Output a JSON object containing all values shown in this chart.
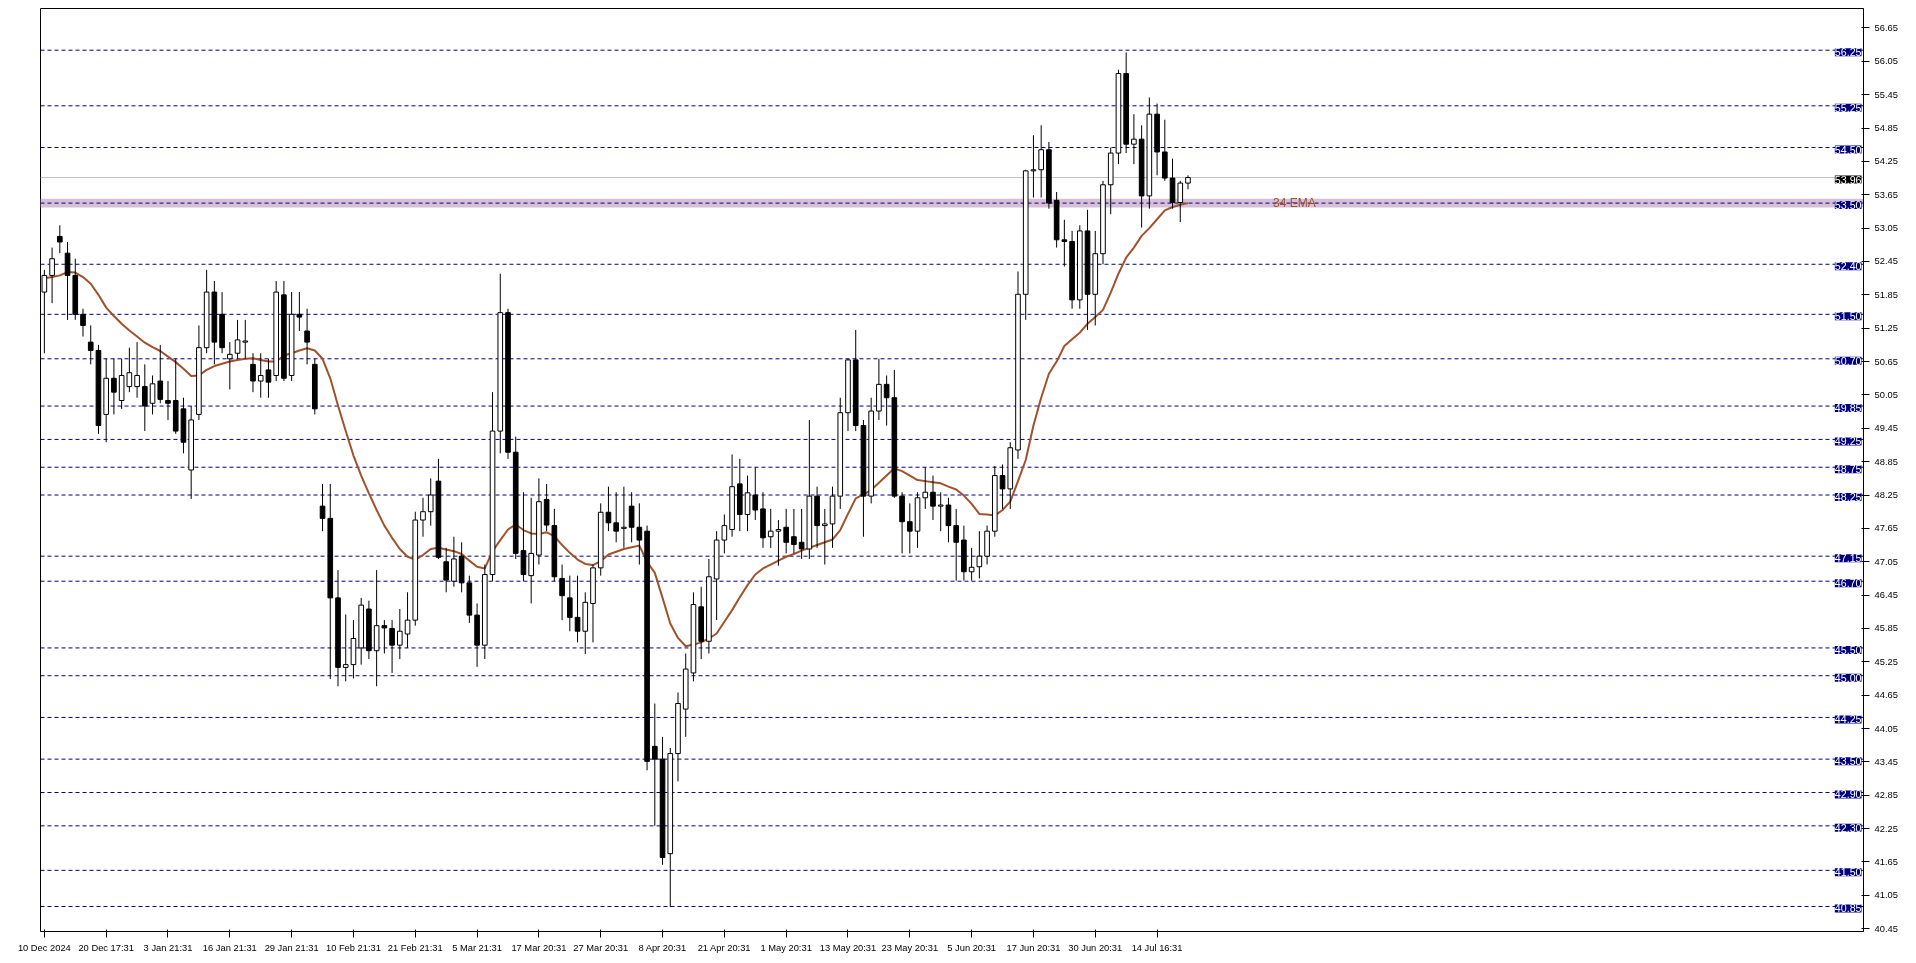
{
  "chart_data": {
    "type": "candlestick",
    "categories": [
      "10 Dec 2024",
      null,
      null,
      null,
      null,
      null,
      null,
      null,
      "20 Dec 17:31",
      null,
      null,
      null,
      null,
      null,
      null,
      null,
      "3 Jan 21:31",
      null,
      null,
      null,
      null,
      null,
      null,
      null,
      "16 Jan 21:31",
      null,
      null,
      null,
      null,
      null,
      null,
      null,
      "29 Jan 21:31",
      null,
      null,
      null,
      null,
      null,
      null,
      null,
      "10 Feb 21:31",
      null,
      null,
      null,
      null,
      null,
      null,
      null,
      "21 Feb 21:31",
      null,
      null,
      null,
      null,
      null,
      null,
      null,
      "5 Mar 21:31",
      null,
      null,
      null,
      null,
      null,
      null,
      null,
      "17 Mar 20:31",
      null,
      null,
      null,
      null,
      null,
      null,
      null,
      "27 Mar 20:31",
      null,
      null,
      null,
      null,
      null,
      null,
      null,
      "8 Apr 20:31",
      null,
      null,
      null,
      null,
      null,
      null,
      null,
      "21 Apr 20:31",
      null,
      null,
      null,
      null,
      null,
      null,
      null,
      "1 May 20:31",
      null,
      null,
      null,
      null,
      null,
      null,
      null,
      "13 May 20:31",
      null,
      null,
      null,
      null,
      null,
      null,
      null,
      "23 May 20:31",
      null,
      null,
      null,
      null,
      null,
      null,
      null,
      "5 Jun 20:31",
      null,
      null,
      null,
      null,
      null,
      null,
      null,
      "17 Jun 20:31",
      null,
      null,
      null,
      null,
      null,
      null,
      null,
      "30 Jun 20:31",
      null,
      null,
      null,
      null,
      null,
      null,
      null,
      "14 Jul 16:31",
      null,
      null,
      null,
      null
    ],
    "ohlc": [
      [
        51.9,
        52.3,
        50.8,
        52.2
      ],
      [
        52.2,
        52.7,
        51.7,
        52.5
      ],
      [
        52.9,
        53.1,
        52.6,
        52.8
      ],
      [
        52.6,
        52.8,
        51.4,
        52.2
      ],
      [
        52.2,
        52.5,
        51.4,
        51.5
      ],
      [
        51.5,
        51.6,
        51.1,
        51.3
      ],
      [
        51.0,
        51.3,
        50.6,
        50.85
      ],
      [
        50.85,
        50.95,
        49.35,
        49.5
      ],
      [
        49.7,
        50.7,
        49.2,
        50.35
      ],
      [
        50.35,
        50.7,
        49.7,
        50.1
      ],
      [
        49.95,
        50.7,
        49.8,
        50.4
      ],
      [
        50.2,
        50.9,
        50.1,
        50.45
      ],
      [
        50.2,
        51.0,
        50.0,
        50.4
      ],
      [
        50.2,
        50.6,
        49.4,
        49.85
      ],
      [
        49.9,
        50.4,
        49.7,
        50.25
      ],
      [
        50.3,
        50.95,
        49.9,
        49.97
      ],
      [
        49.95,
        50.3,
        49.6,
        49.9
      ],
      [
        49.95,
        50.7,
        49.35,
        49.4
      ],
      [
        49.8,
        50.0,
        49.0,
        49.2
      ],
      [
        48.7,
        49.85,
        48.18,
        49.6
      ],
      [
        49.7,
        51.3,
        49.6,
        50.9
      ],
      [
        50.9,
        52.3,
        50.8,
        51.9
      ],
      [
        51.9,
        52.1,
        50.6,
        51.0
      ],
      [
        51.5,
        51.9,
        50.8,
        50.9
      ],
      [
        50.7,
        51.0,
        50.15,
        50.78
      ],
      [
        50.8,
        51.4,
        50.7,
        51.04
      ],
      [
        51.0,
        51.4,
        50.7,
        51.0
      ],
      [
        50.6,
        50.8,
        50.1,
        50.3
      ],
      [
        50.3,
        50.8,
        50.0,
        50.4
      ],
      [
        50.5,
        50.7,
        50.0,
        50.28
      ],
      [
        50.4,
        52.1,
        50.3,
        51.9
      ],
      [
        51.85,
        52.1,
        50.3,
        50.35
      ],
      [
        50.4,
        51.9,
        50.3,
        51.5
      ],
      [
        51.5,
        51.9,
        51.2,
        51.45
      ],
      [
        51.2,
        51.6,
        50.6,
        51.0
      ],
      [
        50.6,
        50.7,
        49.7,
        49.8
      ],
      [
        48.05,
        48.45,
        47.6,
        47.83
      ],
      [
        47.83,
        48.45,
        44.94,
        46.4
      ],
      [
        46.4,
        46.9,
        44.81,
        45.15
      ],
      [
        45.15,
        46.1,
        44.9,
        45.2
      ],
      [
        45.2,
        46.0,
        44.95,
        45.67
      ],
      [
        45.5,
        46.4,
        45.2,
        46.27
      ],
      [
        46.2,
        46.35,
        45.3,
        45.45
      ],
      [
        45.45,
        46.9,
        44.81,
        45.9
      ],
      [
        45.9,
        46.0,
        45.4,
        45.86
      ],
      [
        45.85,
        46.0,
        45.05,
        45.55
      ],
      [
        45.55,
        46.2,
        45.3,
        45.8
      ],
      [
        45.75,
        46.5,
        45.5,
        46.0
      ],
      [
        46.0,
        47.95,
        45.9,
        47.8
      ],
      [
        47.8,
        48.2,
        47.5,
        47.95
      ],
      [
        47.95,
        48.55,
        47.7,
        48.25
      ],
      [
        48.5,
        48.9,
        47.1,
        47.13
      ],
      [
        47.05,
        47.3,
        46.5,
        46.72
      ],
      [
        46.7,
        47.5,
        46.6,
        47.1
      ],
      [
        47.15,
        47.4,
        46.5,
        46.67
      ],
      [
        46.67,
        46.8,
        45.95,
        46.09
      ],
      [
        46.09,
        46.3,
        45.16,
        45.55
      ],
      [
        45.55,
        47.0,
        45.3,
        46.82
      ],
      [
        46.82,
        50.1,
        46.7,
        49.4
      ],
      [
        49.4,
        52.23,
        49.0,
        51.53
      ],
      [
        51.53,
        51.6,
        48.9,
        49.02
      ],
      [
        49.02,
        49.3,
        47.1,
        47.2
      ],
      [
        47.25,
        48.3,
        46.7,
        46.82
      ],
      [
        46.8,
        48.2,
        46.3,
        47.2
      ],
      [
        47.17,
        48.55,
        47.0,
        48.13
      ],
      [
        48.17,
        48.45,
        47.6,
        47.71
      ],
      [
        47.7,
        48.0,
        46.7,
        46.78
      ],
      [
        46.75,
        47.0,
        46.0,
        46.44
      ],
      [
        46.4,
        46.8,
        45.8,
        46.05
      ],
      [
        46.05,
        46.8,
        45.6,
        45.8
      ],
      [
        45.8,
        46.5,
        45.39,
        46.32
      ],
      [
        46.3,
        47.0,
        45.6,
        46.94
      ],
      [
        46.94,
        48.1,
        46.8,
        47.94
      ],
      [
        47.94,
        48.4,
        47.6,
        47.75
      ],
      [
        47.75,
        48.3,
        47.4,
        47.6
      ],
      [
        47.65,
        48.4,
        47.3,
        47.67
      ],
      [
        48.05,
        48.3,
        47.4,
        47.67
      ],
      [
        47.67,
        48.1,
        47.0,
        47.44
      ],
      [
        47.6,
        47.7,
        43.3,
        43.46
      ],
      [
        43.73,
        44.5,
        42.3,
        43.5
      ],
      [
        43.5,
        43.9,
        41.6,
        41.73
      ],
      [
        41.8,
        43.7,
        40.84,
        43.6
      ],
      [
        43.6,
        44.7,
        43.1,
        44.5
      ],
      [
        44.4,
        45.4,
        43.9,
        45.12
      ],
      [
        45.05,
        46.5,
        44.9,
        46.28
      ],
      [
        46.24,
        46.6,
        45.3,
        45.62
      ],
      [
        45.62,
        47.1,
        45.4,
        46.78
      ],
      [
        46.74,
        47.6,
        46.0,
        47.44
      ],
      [
        47.44,
        47.9,
        47.2,
        47.7
      ],
      [
        47.63,
        48.98,
        47.5,
        48.4
      ],
      [
        48.45,
        48.9,
        47.6,
        47.9
      ],
      [
        47.9,
        48.6,
        47.6,
        48.29
      ],
      [
        48.25,
        48.75,
        47.8,
        47.98
      ],
      [
        48.0,
        48.3,
        47.3,
        47.48
      ],
      [
        47.5,
        48.0,
        47.3,
        47.6
      ],
      [
        47.6,
        47.8,
        46.98,
        47.63
      ],
      [
        47.67,
        48.0,
        47.2,
        47.4
      ],
      [
        47.5,
        48.0,
        47.2,
        47.36
      ],
      [
        47.4,
        48.0,
        47.1,
        47.28
      ],
      [
        47.28,
        49.6,
        47.1,
        48.23
      ],
      [
        48.23,
        48.4,
        47.3,
        47.7
      ],
      [
        47.7,
        48.0,
        47.0,
        47.73
      ],
      [
        47.73,
        48.4,
        47.3,
        48.23
      ],
      [
        48.23,
        50.0,
        48.0,
        49.73
      ],
      [
        49.73,
        50.7,
        49.4,
        50.68
      ],
      [
        50.68,
        51.22,
        49.4,
        49.5
      ],
      [
        49.5,
        49.6,
        47.5,
        48.23
      ],
      [
        48.23,
        50.0,
        48.1,
        49.76
      ],
      [
        49.76,
        50.7,
        49.6,
        50.24
      ],
      [
        50.24,
        50.4,
        49.5,
        50.0
      ],
      [
        50.0,
        50.5,
        48.2,
        48.23
      ],
      [
        48.23,
        48.3,
        47.2,
        47.77
      ],
      [
        47.77,
        48.1,
        47.2,
        47.6
      ],
      [
        47.6,
        48.3,
        47.3,
        48.2
      ],
      [
        48.2,
        48.75,
        48.0,
        48.3
      ],
      [
        48.3,
        48.6,
        47.8,
        48.05
      ],
      [
        48.05,
        48.3,
        47.6,
        48.07
      ],
      [
        48.07,
        48.2,
        47.4,
        47.7
      ],
      [
        47.7,
        48.0,
        46.71,
        47.4
      ],
      [
        47.44,
        47.7,
        46.71,
        46.87
      ],
      [
        46.87,
        47.3,
        46.71,
        46.95
      ],
      [
        46.96,
        47.6,
        46.75,
        47.15
      ],
      [
        47.15,
        47.7,
        47.0,
        47.6
      ],
      [
        47.6,
        48.77,
        47.5,
        48.6
      ],
      [
        48.6,
        48.8,
        48.0,
        48.36
      ],
      [
        48.36,
        49.2,
        48.0,
        49.1
      ],
      [
        49.06,
        52.27,
        48.9,
        51.86
      ],
      [
        51.86,
        54.1,
        51.4,
        54.08
      ],
      [
        54.08,
        54.72,
        53.6,
        54.1
      ],
      [
        54.1,
        54.9,
        53.6,
        54.46
      ],
      [
        54.46,
        54.6,
        53.4,
        53.5
      ],
      [
        53.55,
        53.7,
        52.7,
        52.84
      ],
      [
        52.84,
        53.2,
        52.36,
        52.81
      ],
      [
        52.81,
        53.0,
        51.6,
        51.76
      ],
      [
        51.76,
        53.1,
        51.6,
        53.0
      ],
      [
        53.0,
        53.38,
        51.22,
        51.86
      ],
      [
        51.86,
        53.0,
        51.3,
        52.59
      ],
      [
        52.59,
        53.9,
        52.4,
        53.83
      ],
      [
        53.83,
        54.5,
        53.3,
        54.4
      ],
      [
        54.4,
        55.9,
        54.2,
        55.83
      ],
      [
        55.83,
        56.21,
        54.4,
        54.56
      ],
      [
        54.56,
        55.1,
        54.2,
        54.65
      ],
      [
        54.65,
        54.9,
        53.06,
        53.63
      ],
      [
        53.63,
        55.4,
        53.4,
        55.1
      ],
      [
        55.1,
        55.29,
        54.0,
        54.42
      ],
      [
        54.42,
        55.0,
        53.9,
        53.95
      ],
      [
        53.95,
        54.3,
        53.4,
        53.51
      ],
      [
        53.51,
        53.9,
        53.16,
        53.86
      ],
      [
        53.86,
        54.0,
        53.75,
        53.96
      ]
    ],
    "color": "#000000",
    "series": [
      {
        "type": "line",
        "name": "34 EMA",
        "color": "#a0522d",
        "values": [
          52.15,
          52.17,
          52.2,
          52.26,
          52.25,
          52.17,
          52.05,
          51.85,
          51.62,
          51.47,
          51.33,
          51.21,
          51.1,
          50.99,
          50.91,
          50.84,
          50.74,
          50.64,
          50.52,
          50.39,
          50.4,
          50.5,
          50.57,
          50.61,
          50.65,
          50.68,
          50.7,
          50.71,
          50.68,
          50.65,
          50.65,
          50.76,
          50.8,
          50.85,
          50.89,
          50.85,
          50.7,
          50.35,
          49.86,
          49.4,
          48.96,
          48.6,
          48.28,
          47.98,
          47.7,
          47.48,
          47.28,
          47.14,
          47.09,
          47.17,
          47.28,
          47.3,
          47.27,
          47.24,
          47.19,
          47.07,
          46.96,
          46.93,
          47.24,
          47.44,
          47.63,
          47.72,
          47.62,
          47.56,
          47.55,
          47.58,
          47.51,
          47.35,
          47.21,
          47.09,
          47.01,
          46.99,
          47.06,
          47.18,
          47.23,
          47.28,
          47.31,
          47.34,
          47.05,
          46.85,
          46.4,
          45.94,
          45.68,
          45.53,
          45.56,
          45.6,
          45.67,
          45.76,
          45.97,
          46.18,
          46.41,
          46.63,
          46.82,
          46.93,
          47.0,
          47.07,
          47.14,
          47.19,
          47.25,
          47.3,
          47.35,
          47.4,
          47.45,
          47.62,
          47.91,
          48.19,
          48.26,
          48.34,
          48.47,
          48.6,
          48.73,
          48.68,
          48.6,
          48.52,
          48.5,
          48.48,
          48.46,
          48.4,
          48.35,
          48.24,
          48.09,
          47.91,
          47.9,
          47.88,
          47.98,
          48.13,
          48.5,
          48.88,
          49.5,
          50.0,
          50.43,
          50.65,
          50.93,
          51.05,
          51.17,
          51.33,
          51.45,
          51.58,
          51.89,
          52.23,
          52.52,
          52.7,
          52.91,
          53.05,
          53.21,
          53.37,
          53.43,
          53.47,
          53.5
        ]
      }
    ],
    "ylim": [
      40.4,
      57.0
    ],
    "yticks": [
      {
        "value": 40.45,
        "label": "40.45"
      },
      {
        "value": 41.05,
        "label": "41.05"
      },
      {
        "value": 41.65,
        "label": "41.65"
      },
      {
        "value": 42.25,
        "label": "42.25"
      },
      {
        "value": 42.85,
        "label": "42.85"
      },
      {
        "value": 43.45,
        "label": "43.45"
      },
      {
        "value": 44.05,
        "label": "44.05"
      },
      {
        "value": 44.65,
        "label": "44.65"
      },
      {
        "value": 45.25,
        "label": "45.25"
      },
      {
        "value": 45.85,
        "label": "45.85"
      },
      {
        "value": 46.45,
        "label": "46.45"
      },
      {
        "value": 47.05,
        "label": "47.05"
      },
      {
        "value": 47.65,
        "label": "47.65"
      },
      {
        "value": 48.25,
        "label": "48.25"
      },
      {
        "value": 48.85,
        "label": "48.85"
      },
      {
        "value": 49.45,
        "label": "49.45"
      },
      {
        "value": 50.05,
        "label": "50.05"
      },
      {
        "value": 50.65,
        "label": "50.65"
      },
      {
        "value": 51.25,
        "label": "51.25"
      },
      {
        "value": 51.85,
        "label": "51.85"
      },
      {
        "value": 52.45,
        "label": "52.45"
      },
      {
        "value": 53.05,
        "label": "53.05"
      },
      {
        "value": 53.65,
        "label": "53.65"
      },
      {
        "value": 54.25,
        "label": "54.25"
      },
      {
        "value": 54.85,
        "label": "54.85"
      },
      {
        "value": 55.45,
        "label": "55.45"
      },
      {
        "value": 56.05,
        "label": "56.05"
      },
      {
        "value": 56.65,
        "label": "56.65"
      }
    ],
    "ref_lines": [
      {
        "axis": "y",
        "value": 56.25,
        "label": "56.25",
        "color": "#000080",
        "line_style": "dashed"
      },
      {
        "axis": "y",
        "value": 55.25,
        "label": "55.25",
        "color": "#000080",
        "line_style": "dashed"
      },
      {
        "axis": "y",
        "value": 54.5,
        "label": "54.50",
        "color": "#000080",
        "line_style": "dashed"
      },
      {
        "axis": "y",
        "value": 53.96,
        "label": "53.96",
        "color": "#c0c0c0",
        "line_style": "solid"
      },
      {
        "axis": "y",
        "value": 53.5,
        "label": "53.50",
        "color": "#000080",
        "line_style": "dashed"
      },
      {
        "axis": "y",
        "value": 52.4,
        "label": "52.40",
        "color": "#000080",
        "line_style": "dashed"
      },
      {
        "axis": "y",
        "value": 51.5,
        "label": "51.50",
        "color": "#000080",
        "line_style": "dashed"
      },
      {
        "axis": "y",
        "value": 50.7,
        "label": "50.70",
        "color": "#000080",
        "line_style": "dashed"
      },
      {
        "axis": "y",
        "value": 49.85,
        "label": "49.85",
        "color": "#000080",
        "line_style": "dashed"
      },
      {
        "axis": "y",
        "value": 49.25,
        "label": "49.25",
        "color": "#000080",
        "line_style": "dashed"
      },
      {
        "axis": "y",
        "value": 48.75,
        "label": "48.75",
        "color": "#000080",
        "line_style": "dashed"
      },
      {
        "axis": "y",
        "value": 48.25,
        "label": "48.25",
        "color": "#000080",
        "line_style": "dashed"
      },
      {
        "axis": "y",
        "value": 47.15,
        "label": "47.15",
        "color": "#000080",
        "line_style": "dashed"
      },
      {
        "axis": "y",
        "value": 46.7,
        "label": "46.70",
        "color": "#000080",
        "line_style": "dashed"
      },
      {
        "axis": "y",
        "value": 45.5,
        "label": "45.50",
        "color": "#000080",
        "line_style": "dashed"
      },
      {
        "axis": "y",
        "value": 45.0,
        "label": "45.00",
        "color": "#000080",
        "line_style": "dashed"
      },
      {
        "axis": "y",
        "value": 44.25,
        "label": "44.25",
        "color": "#000080",
        "line_style": "dashed"
      },
      {
        "axis": "y",
        "value": 43.5,
        "label": "43.50",
        "color": "#000080",
        "line_style": "dashed"
      },
      {
        "axis": "y",
        "value": 42.9,
        "label": "42.90",
        "color": "#000080",
        "line_style": "dashed"
      },
      {
        "axis": "y",
        "value": 42.3,
        "label": "42.30",
        "color": "#000080",
        "line_style": "dashed"
      },
      {
        "axis": "y",
        "value": 41.5,
        "label": "41.50",
        "color": "#000080",
        "line_style": "dashed"
      },
      {
        "axis": "y",
        "value": 40.85,
        "label": "40.85",
        "color": "#000080",
        "line_style": "dashed"
      }
    ],
    "bands": [
      {
        "axis": "y",
        "from": 53.42,
        "to": 53.58,
        "color": "#d8bfd8"
      }
    ]
  }
}
